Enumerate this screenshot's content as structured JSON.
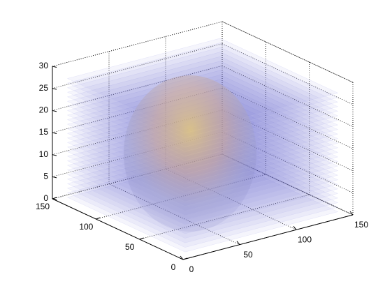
{
  "chart_data": {
    "type": "volume",
    "xlim": [
      0,
      150
    ],
    "xticks": [
      0,
      50,
      100,
      150
    ],
    "ylim": [
      0,
      150
    ],
    "yticks": [
      0,
      50,
      100,
      150
    ],
    "zlim": [
      0,
      30
    ],
    "zticks": [
      0,
      5,
      10,
      15,
      20,
      25,
      30
    ],
    "grid": true
  }
}
